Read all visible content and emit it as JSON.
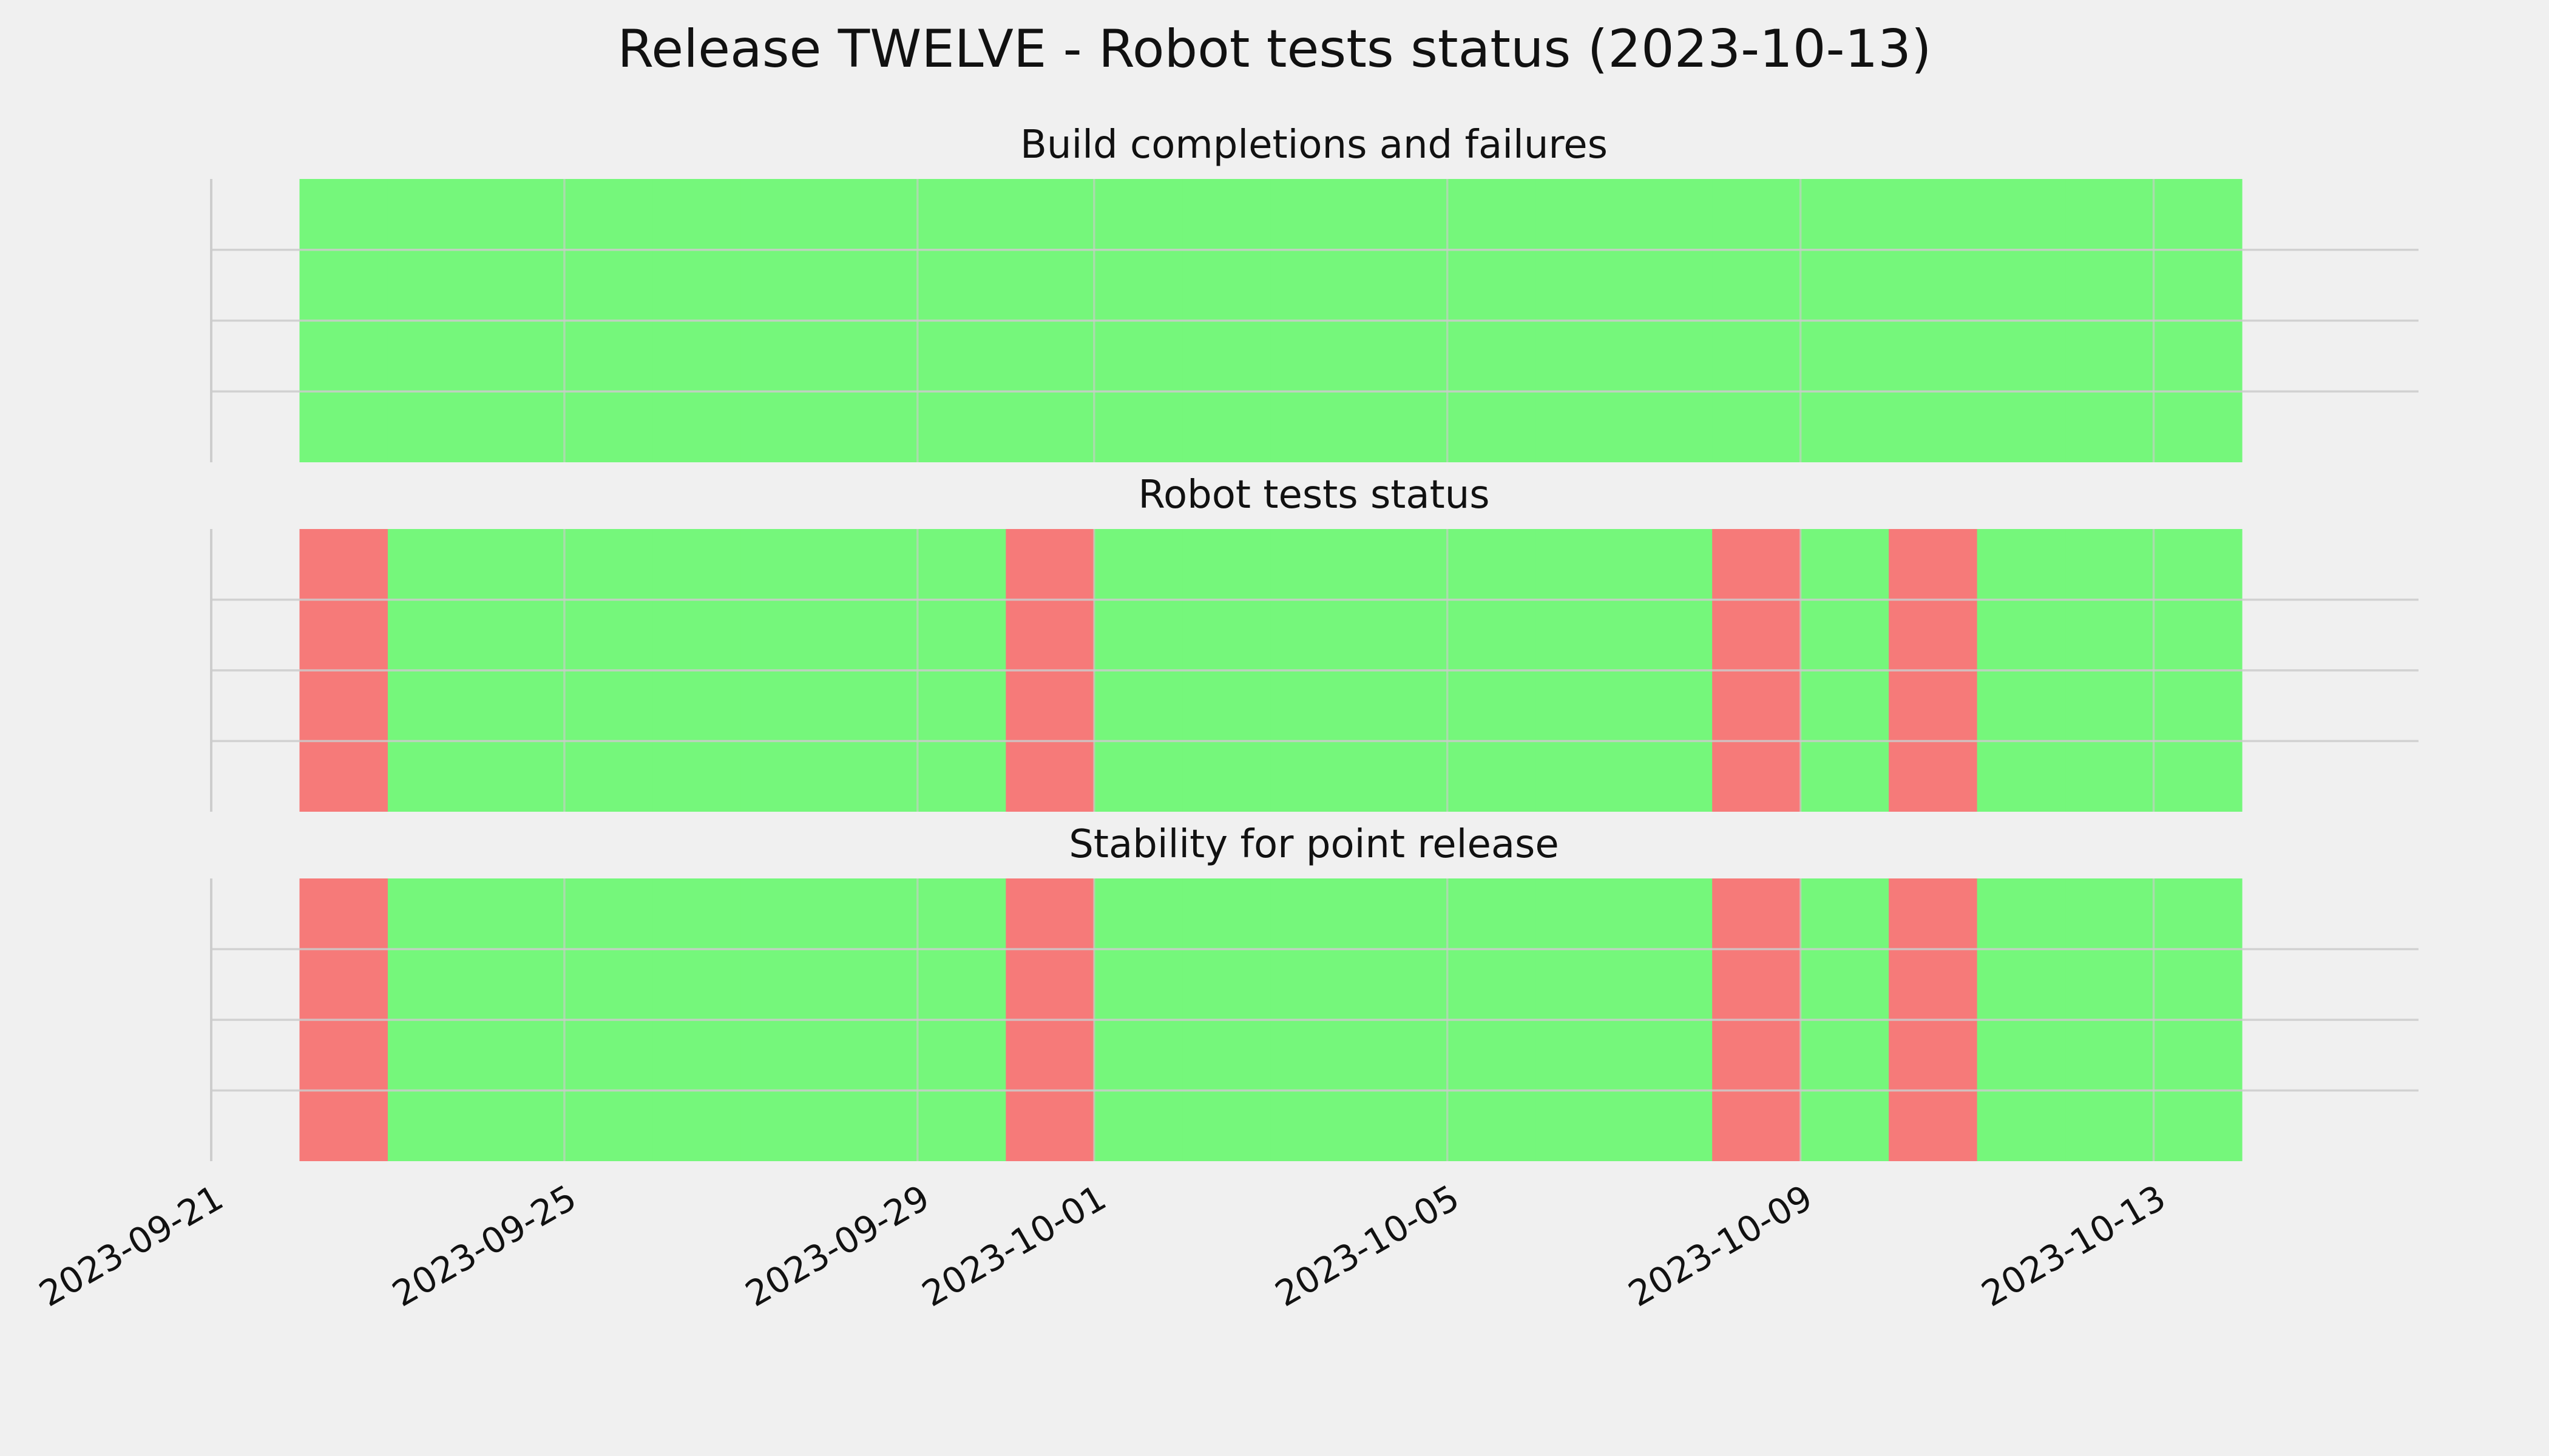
{
  "colors": {
    "background": "#f0f0f0",
    "pass": "#75f77b",
    "fail": "#f67a79",
    "grid": "#cbcbcb",
    "axis_line": "#cfcfcf"
  },
  "chart_data": {
    "type": "bar",
    "title": "Release TWELVE - Robot tests status (2023-10-13)",
    "x_tick_labels": [
      "2023-09-21",
      "2023-09-25",
      "2023-09-29",
      "2023-10-01",
      "2023-10-05",
      "2023-10-09",
      "2023-10-13"
    ],
    "x_ticks": [
      "2023-09-21",
      "2023-09-25",
      "2023-09-29",
      "2023-10-01",
      "2023-10-05",
      "2023-10-09",
      "2023-10-13"
    ],
    "xlim": [
      "2023-09-21",
      "2023-10-16"
    ],
    "grid": true,
    "panels": [
      {
        "title": "Build completions and failures",
        "dates": [
          "2023-09-22",
          "2023-09-23",
          "2023-09-24",
          "2023-09-25",
          "2023-09-26",
          "2023-09-27",
          "2023-09-28",
          "2023-09-29",
          "2023-09-30",
          "2023-10-01",
          "2023-10-02",
          "2023-10-03",
          "2023-10-04",
          "2023-10-05",
          "2023-10-06",
          "2023-10-07",
          "2023-10-08",
          "2023-10-09",
          "2023-10-10",
          "2023-10-11",
          "2023-10-12",
          "2023-10-13"
        ],
        "status": [
          "pass",
          "pass",
          "pass",
          "pass",
          "pass",
          "pass",
          "pass",
          "pass",
          "pass",
          "pass",
          "pass",
          "pass",
          "pass",
          "pass",
          "pass",
          "pass",
          "pass",
          "pass",
          "pass",
          "pass",
          "pass",
          "pass"
        ]
      },
      {
        "title": "Robot tests status",
        "dates": [
          "2023-09-22",
          "2023-09-23",
          "2023-09-24",
          "2023-09-25",
          "2023-09-26",
          "2023-09-27",
          "2023-09-28",
          "2023-09-29",
          "2023-09-30",
          "2023-10-01",
          "2023-10-02",
          "2023-10-03",
          "2023-10-04",
          "2023-10-05",
          "2023-10-06",
          "2023-10-07",
          "2023-10-08",
          "2023-10-09",
          "2023-10-10",
          "2023-10-11",
          "2023-10-12",
          "2023-10-13"
        ],
        "status": [
          "fail",
          "pass",
          "pass",
          "pass",
          "pass",
          "pass",
          "pass",
          "pass",
          "fail",
          "pass",
          "pass",
          "pass",
          "pass",
          "pass",
          "pass",
          "pass",
          "fail",
          "pass",
          "fail",
          "pass",
          "pass",
          "pass"
        ]
      },
      {
        "title": "Stability for point release",
        "dates": [
          "2023-09-22",
          "2023-09-23",
          "2023-09-24",
          "2023-09-25",
          "2023-09-26",
          "2023-09-27",
          "2023-09-28",
          "2023-09-29",
          "2023-09-30",
          "2023-10-01",
          "2023-10-02",
          "2023-10-03",
          "2023-10-04",
          "2023-10-05",
          "2023-10-06",
          "2023-10-07",
          "2023-10-08",
          "2023-10-09",
          "2023-10-10",
          "2023-10-11",
          "2023-10-12",
          "2023-10-13"
        ],
        "status": [
          "fail",
          "pass",
          "pass",
          "pass",
          "pass",
          "pass",
          "pass",
          "pass",
          "fail",
          "pass",
          "pass",
          "pass",
          "pass",
          "pass",
          "pass",
          "pass",
          "fail",
          "pass",
          "fail",
          "pass",
          "pass",
          "pass"
        ]
      }
    ]
  }
}
